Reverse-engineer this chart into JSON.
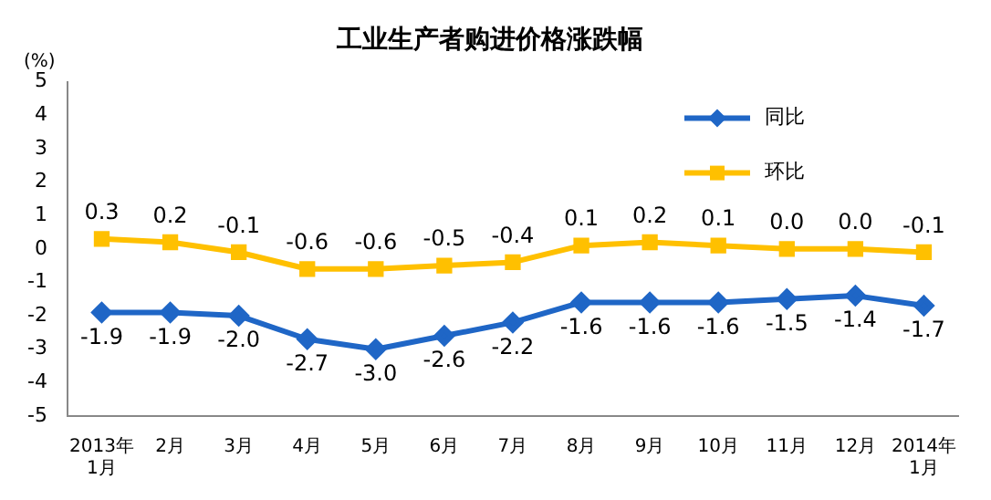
{
  "chart_data": {
    "type": "line",
    "title": "工业生产者购进价格涨跌幅",
    "ylabel": "(%)",
    "categories": [
      "2013年\n1月",
      "2月",
      "3月",
      "4月",
      "5月",
      "6月",
      "7月",
      "8月",
      "9月",
      "10月",
      "11月",
      "12月",
      "2014年\n1月"
    ],
    "series": [
      {
        "name": "同比",
        "color": "#1f66c6",
        "marker": "diamond",
        "values": [
          -1.9,
          -1.9,
          -2.0,
          -2.7,
          -3.0,
          -2.6,
          -2.2,
          -1.6,
          -1.6,
          -1.6,
          -1.5,
          -1.4,
          -1.7
        ],
        "value_labels": [
          "-1.9",
          "-1.9",
          "-2.0",
          "-2.7",
          "-3.0",
          "-2.6",
          "-2.2",
          "-1.6",
          "-1.6",
          "-1.6",
          "-1.5",
          "-1.4",
          "-1.7"
        ]
      },
      {
        "name": "环比",
        "color": "#ffc000",
        "marker": "square",
        "values": [
          0.3,
          0.2,
          -0.1,
          -0.6,
          -0.6,
          -0.5,
          -0.4,
          0.1,
          0.2,
          0.1,
          0.0,
          0.0,
          -0.1
        ],
        "value_labels": [
          "0.3",
          "0.2",
          "-0.1",
          "-0.6",
          "-0.6",
          "-0.5",
          "-0.4",
          "0.1",
          "0.2",
          "0.1",
          "0.0",
          "0.0",
          "-0.1"
        ]
      }
    ],
    "ylim": [
      -5,
      5
    ],
    "yticks": [
      -5,
      -4,
      -3,
      -2,
      -1,
      0,
      1,
      2,
      3,
      4,
      5
    ],
    "grid": false,
    "legend": "top right",
    "line_style": "solid"
  }
}
